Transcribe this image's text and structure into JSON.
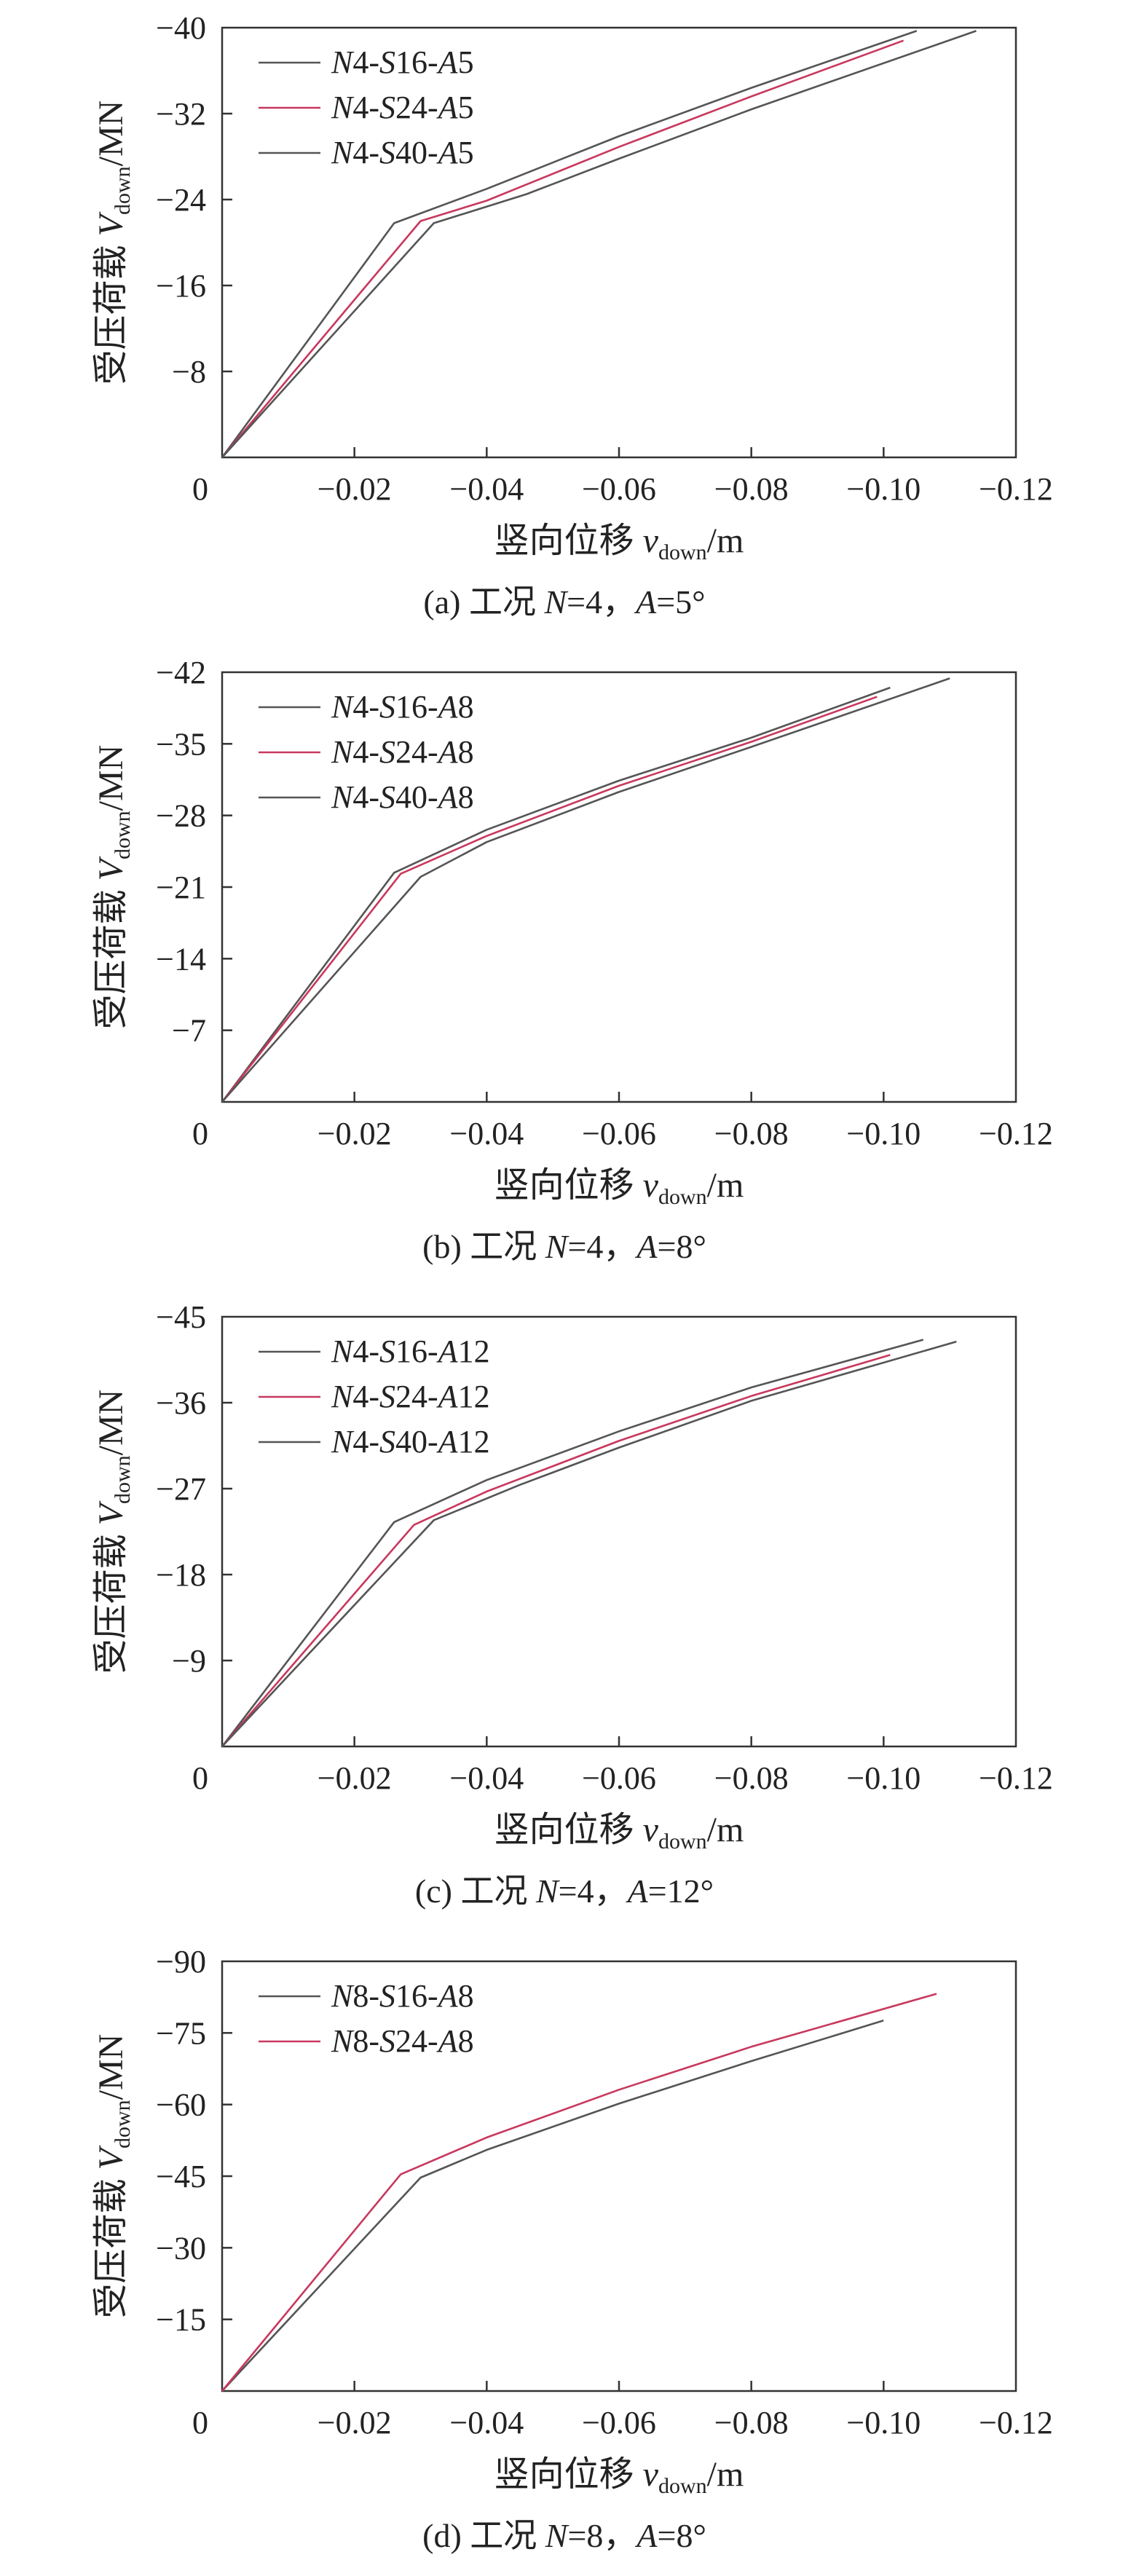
{
  "chart_data": [
    {
      "type": "line",
      "caption": "(a) 工况 N=4，A=5°",
      "xlabel": "竖向位移 v_down/m",
      "ylabel": "受压荷载 V_down/MN",
      "xlim": [
        0,
        -0.12
      ],
      "ylim": [
        0,
        -40
      ],
      "x_ticks": [
        "0",
        "−0.02",
        "−0.04",
        "−0.06",
        "−0.08",
        "−0.10",
        "−0.12"
      ],
      "y_ticks": [
        "−8",
        "−16",
        "−24",
        "−32",
        "−40"
      ],
      "legend_position": "top-left",
      "series": [
        {
          "name": "N4-S16-A5",
          "color": "#555555",
          "x": [
            0,
            -0.026,
            -0.04,
            -0.06,
            -0.08,
            -0.105
          ],
          "y": [
            0,
            -21.8,
            -25.0,
            -29.9,
            -34.4,
            -39.7
          ]
        },
        {
          "name": "N4-S24-A5",
          "color": "#c8385e",
          "x": [
            0,
            -0.03,
            -0.04,
            -0.06,
            -0.08,
            -0.103
          ],
          "y": [
            0,
            -22.0,
            -23.9,
            -28.9,
            -33.6,
            -38.8
          ]
        },
        {
          "name": "N4-S40-A5",
          "color": "#555555",
          "x": [
            0,
            -0.032,
            -0.046,
            -0.06,
            -0.08,
            -0.114
          ],
          "y": [
            0,
            -21.8,
            -24.5,
            -27.8,
            -32.4,
            -39.7
          ]
        }
      ]
    },
    {
      "type": "line",
      "caption": "(b) 工况 N=4，A=8°",
      "xlabel": "竖向位移 v_down/m",
      "ylabel": "受压荷载 V_down/MN",
      "xlim": [
        0,
        -0.12
      ],
      "ylim": [
        0,
        -42
      ],
      "x_ticks": [
        "0",
        "−0.02",
        "−0.04",
        "−0.06",
        "−0.08",
        "−0.10",
        "−0.12"
      ],
      "y_ticks": [
        "−7",
        "−14",
        "−21",
        "−28",
        "−35",
        "−42"
      ],
      "legend_position": "top-left",
      "series": [
        {
          "name": "N4-S16-A8",
          "color": "#555555",
          "x": [
            0,
            -0.026,
            -0.04,
            -0.06,
            -0.08,
            -0.101
          ],
          "y": [
            0,
            -22.4,
            -26.6,
            -31.4,
            -35.6,
            -40.5
          ]
        },
        {
          "name": "N4-S24-A8",
          "color": "#c8385e",
          "x": [
            0,
            -0.027,
            -0.04,
            -0.06,
            -0.08,
            -0.099
          ],
          "y": [
            0,
            -22.3,
            -26.0,
            -30.9,
            -35.2,
            -39.6
          ]
        },
        {
          "name": "N4-S40-A8",
          "color": "#555555",
          "x": [
            0,
            -0.03,
            -0.04,
            -0.06,
            -0.08,
            -0.11
          ],
          "y": [
            0,
            -22.0,
            -25.4,
            -30.3,
            -34.7,
            -41.4
          ]
        }
      ]
    },
    {
      "type": "line",
      "caption": "(c) 工况 N=4，A=12°",
      "xlabel": "竖向位移 v_down/m",
      "ylabel": "受压荷载 V_down/MN",
      "xlim": [
        0,
        -0.12
      ],
      "ylim": [
        0,
        -45
      ],
      "x_ticks": [
        "0",
        "−0.02",
        "−0.04",
        "−0.06",
        "−0.08",
        "−0.10",
        "−0.12"
      ],
      "y_ticks": [
        "−9",
        "−18",
        "−27",
        "−36",
        "−45"
      ],
      "legend_position": "top-left",
      "series": [
        {
          "name": "N4-S16-A12",
          "color": "#555555",
          "x": [
            0,
            -0.026,
            -0.04,
            -0.06,
            -0.08,
            -0.106
          ],
          "y": [
            0,
            -23.5,
            -27.9,
            -33.0,
            -37.6,
            -42.6
          ]
        },
        {
          "name": "N4-S24-A12",
          "color": "#c8385e",
          "x": [
            0,
            -0.029,
            -0.04,
            -0.06,
            -0.08,
            -0.101
          ],
          "y": [
            0,
            -23.2,
            -26.7,
            -32.0,
            -36.7,
            -41.0
          ]
        },
        {
          "name": "N4-S40-A12",
          "color": "#555555",
          "x": [
            0,
            -0.032,
            -0.045,
            -0.06,
            -0.08,
            -0.111
          ],
          "y": [
            0,
            -23.7,
            -27.4,
            -31.3,
            -36.2,
            -42.4
          ]
        }
      ]
    },
    {
      "type": "line",
      "caption": "(d) 工况 N=8，A=8°",
      "xlabel": "竖向位移 v_down/m",
      "ylabel": "受压荷载 V_down/MN",
      "xlim": [
        0,
        -0.12
      ],
      "ylim": [
        0,
        -90
      ],
      "x_ticks": [
        "0",
        "−0.02",
        "−0.04",
        "−0.06",
        "−0.08",
        "−0.10",
        "−0.12"
      ],
      "y_ticks": [
        "−15",
        "−30",
        "−45",
        "−60",
        "−75",
        "−90"
      ],
      "legend_position": "top-left",
      "series": [
        {
          "name": "N8-S16-A8",
          "color": "#555555",
          "x": [
            0,
            -0.03,
            -0.04,
            -0.06,
            -0.08,
            -0.1
          ],
          "y": [
            0,
            -44.7,
            -50.5,
            -60.2,
            -69.1,
            -77.6
          ]
        },
        {
          "name": "N8-S24-A8",
          "color": "#c8385e",
          "x": [
            0,
            -0.027,
            -0.04,
            -0.06,
            -0.08,
            -0.108
          ],
          "y": [
            0,
            -45.4,
            -53.1,
            -63.1,
            -72.1,
            -83.2
          ]
        }
      ]
    }
  ]
}
